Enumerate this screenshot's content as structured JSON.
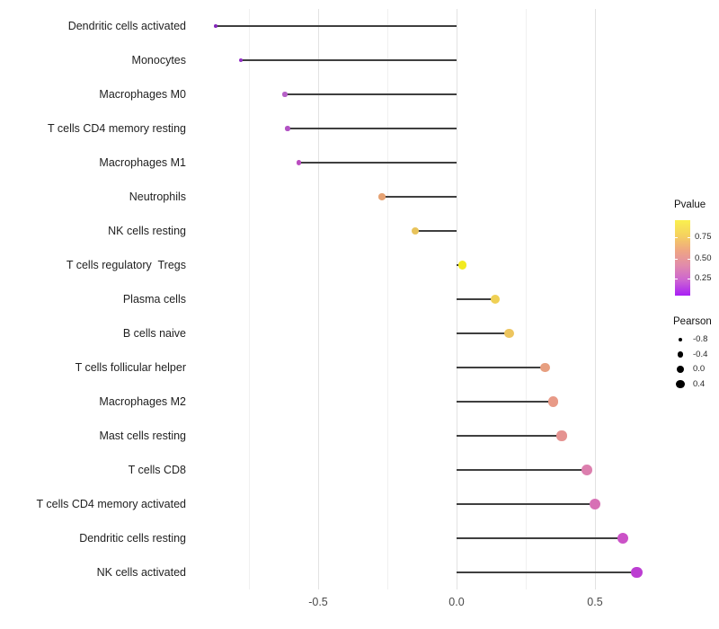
{
  "chart_data": {
    "type": "scatter",
    "variant": "lollipop",
    "title": "",
    "xlabel": "",
    "ylabel": "",
    "orientation": "horizontal",
    "baseline": 0,
    "grid": "vertical",
    "xlim": [
      -0.94,
      0.73
    ],
    "x_ticks": [
      {
        "value": -0.5,
        "label": "-0.5"
      },
      {
        "value": 0.0,
        "label": "0.0"
      },
      {
        "value": 0.5,
        "label": "0.5"
      }
    ],
    "x_minor_ticks": [
      -0.75,
      -0.25,
      0.25
    ],
    "points": [
      {
        "label": "Dendritic cells activated",
        "pearson": -0.87,
        "color": "#8426bb"
      },
      {
        "label": "Monocytes",
        "pearson": -0.78,
        "color": "#9330c6"
      },
      {
        "label": "Macrophages M0",
        "pearson": -0.62,
        "color": "#b660c7"
      },
      {
        "label": "T cells CD4 memory resting",
        "pearson": -0.61,
        "color": "#b253c4"
      },
      {
        "label": "Macrophages M1",
        "pearson": -0.57,
        "color": "#ba4cc0"
      },
      {
        "label": "Neutrophils",
        "pearson": -0.27,
        "color": "#e6a273"
      },
      {
        "label": "NK cells resting",
        "pearson": -0.15,
        "color": "#e8c35b"
      },
      {
        "label": "T cells regulatory  Tregs",
        "pearson": 0.02,
        "color": "#f2ea1f"
      },
      {
        "label": "Plasma cells",
        "pearson": 0.14,
        "color": "#efd054"
      },
      {
        "label": "B cells naive",
        "pearson": 0.19,
        "color": "#edc55e"
      },
      {
        "label": "T cells follicular helper",
        "pearson": 0.32,
        "color": "#e79f80"
      },
      {
        "label": "Macrophages M2",
        "pearson": 0.35,
        "color": "#e89a87"
      },
      {
        "label": "Mast cells resting",
        "pearson": 0.38,
        "color": "#e59391"
      },
      {
        "label": "T cells CD8",
        "pearson": 0.47,
        "color": "#dc7fae"
      },
      {
        "label": "T cells CD4 memory activated",
        "pearson": 0.5,
        "color": "#d770b5"
      },
      {
        "label": "Dendritic cells resting",
        "pearson": 0.6,
        "color": "#cb52c7"
      },
      {
        "label": "NK cells activated",
        "pearson": 0.65,
        "color": "#bc3ed2"
      }
    ],
    "legend": {
      "position": "right",
      "pvalue": {
        "title": "Pvalue",
        "gradient_top_to_bottom": [
          "#faf04e",
          "#f5d25f",
          "#efa682",
          "#e18bab",
          "#cc63d2",
          "#a81ff5"
        ],
        "ticks": [
          "0.75",
          "0.50",
          "0.25"
        ]
      },
      "pearson": {
        "title": "Pearson",
        "dot_color": "#000000",
        "entries": [
          {
            "label": "-0.8"
          },
          {
            "label": "-0.4"
          },
          {
            "label": "0.0"
          },
          {
            "label": "0.4"
          }
        ]
      }
    }
  }
}
